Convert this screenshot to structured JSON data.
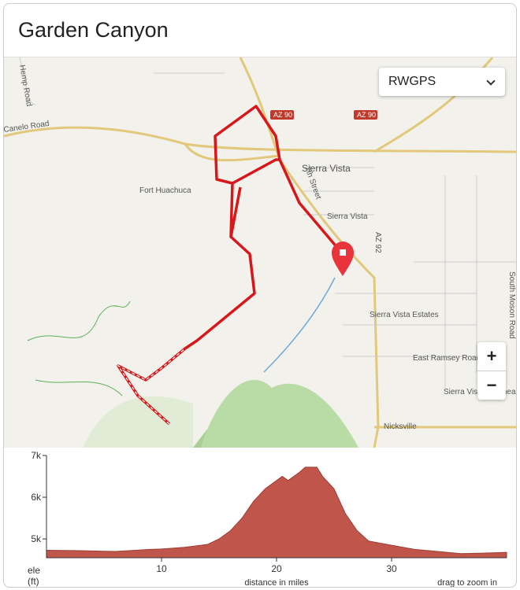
{
  "header": {
    "title": "Garden Canyon"
  },
  "map": {
    "layer_select": "RWGPS",
    "zoom_in": "+",
    "zoom_out": "−",
    "labels": [
      "Hemp Road",
      "Canelo Road",
      "AZ 90",
      "AZ 90",
      "Sierra Vista",
      "7th Street",
      "Fort Huachuca",
      "Sierra Vista",
      "AZ 92",
      "Sierra Vista Estates",
      "East Ramsey Road",
      "Sierra Vista Southeast",
      "South Moson Road",
      "Nicksville"
    ]
  },
  "elevation_profile": {
    "type": "area",
    "color": "#c0564b",
    "x": [
      0,
      3,
      6,
      9,
      10,
      12,
      14,
      15,
      16,
      17,
      18,
      19,
      20,
      20.5,
      21,
      22,
      22.5,
      23.5,
      24,
      25,
      26,
      27,
      28,
      30,
      32,
      34,
      36,
      38,
      40
    ],
    "values": [
      4730,
      4720,
      4700,
      4750,
      4760,
      4800,
      4870,
      5000,
      5200,
      5500,
      5900,
      6200,
      6400,
      6500,
      6400,
      6600,
      6720,
      6720,
      6500,
      6200,
      5600,
      5200,
      4950,
      4850,
      4750,
      4700,
      4650,
      4660,
      4680
    ],
    "xlim": [
      0,
      40
    ],
    "ylim": [
      4550,
      7000
    ],
    "xticks": [
      10,
      20,
      30
    ],
    "yticks": [
      {
        "value": 7000,
        "label": "7k"
      },
      {
        "value": 6000,
        "label": "6k"
      },
      {
        "value": 5000,
        "label": "5k"
      }
    ],
    "y_label": [
      "ele",
      "(ft)"
    ],
    "x_label": "distance in miles",
    "hint": "drag to zoom in"
  }
}
